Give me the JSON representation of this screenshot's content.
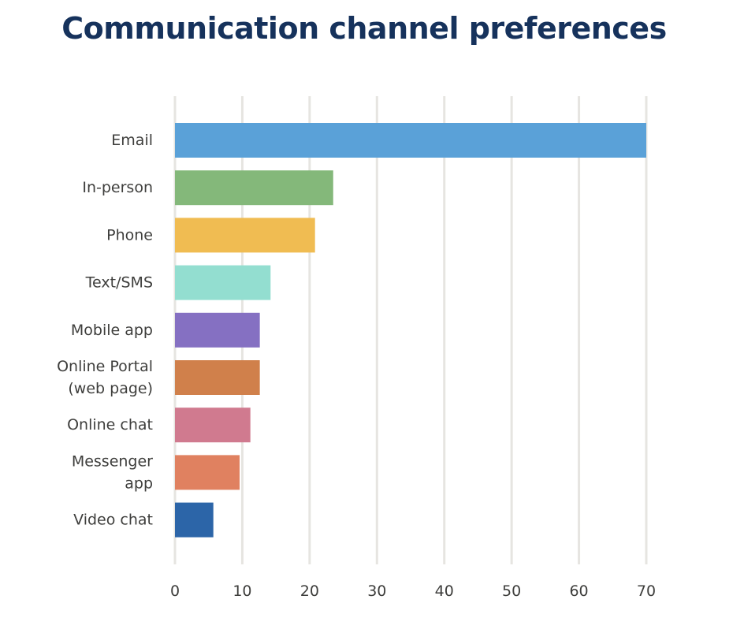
{
  "chart_data": {
    "type": "bar",
    "orientation": "horizontal",
    "title": "Communication channel preferences",
    "xlabel": "",
    "ylabel": "",
    "categories": [
      "Email",
      "In-person",
      "Phone",
      "Text/SMS",
      "Mobile app",
      "Online Portal (web page)",
      "Online chat",
      "Messenger app",
      "Video chat"
    ],
    "category_lines": [
      [
        "Email"
      ],
      [
        "In-person"
      ],
      [
        "Phone"
      ],
      [
        "Text/SMS"
      ],
      [
        "Mobile app"
      ],
      [
        "Online Portal",
        "(web page)"
      ],
      [
        "Online chat"
      ],
      [
        "Messenger",
        "app"
      ],
      [
        "Video chat"
      ]
    ],
    "values": [
      70,
      23.5,
      20.8,
      14.2,
      12.6,
      12.6,
      11.2,
      9.6,
      5.7
    ],
    "colors": [
      "#5aa1d8",
      "#84b87a",
      "#f0bc52",
      "#93ded0",
      "#8570c2",
      "#d0804b",
      "#d07a8f",
      "#e08160",
      "#2c65a8"
    ],
    "xlim": [
      0,
      70
    ],
    "xticks": [
      0,
      10,
      20,
      30,
      40,
      50,
      60,
      70
    ],
    "grid": true,
    "legend": "none"
  }
}
